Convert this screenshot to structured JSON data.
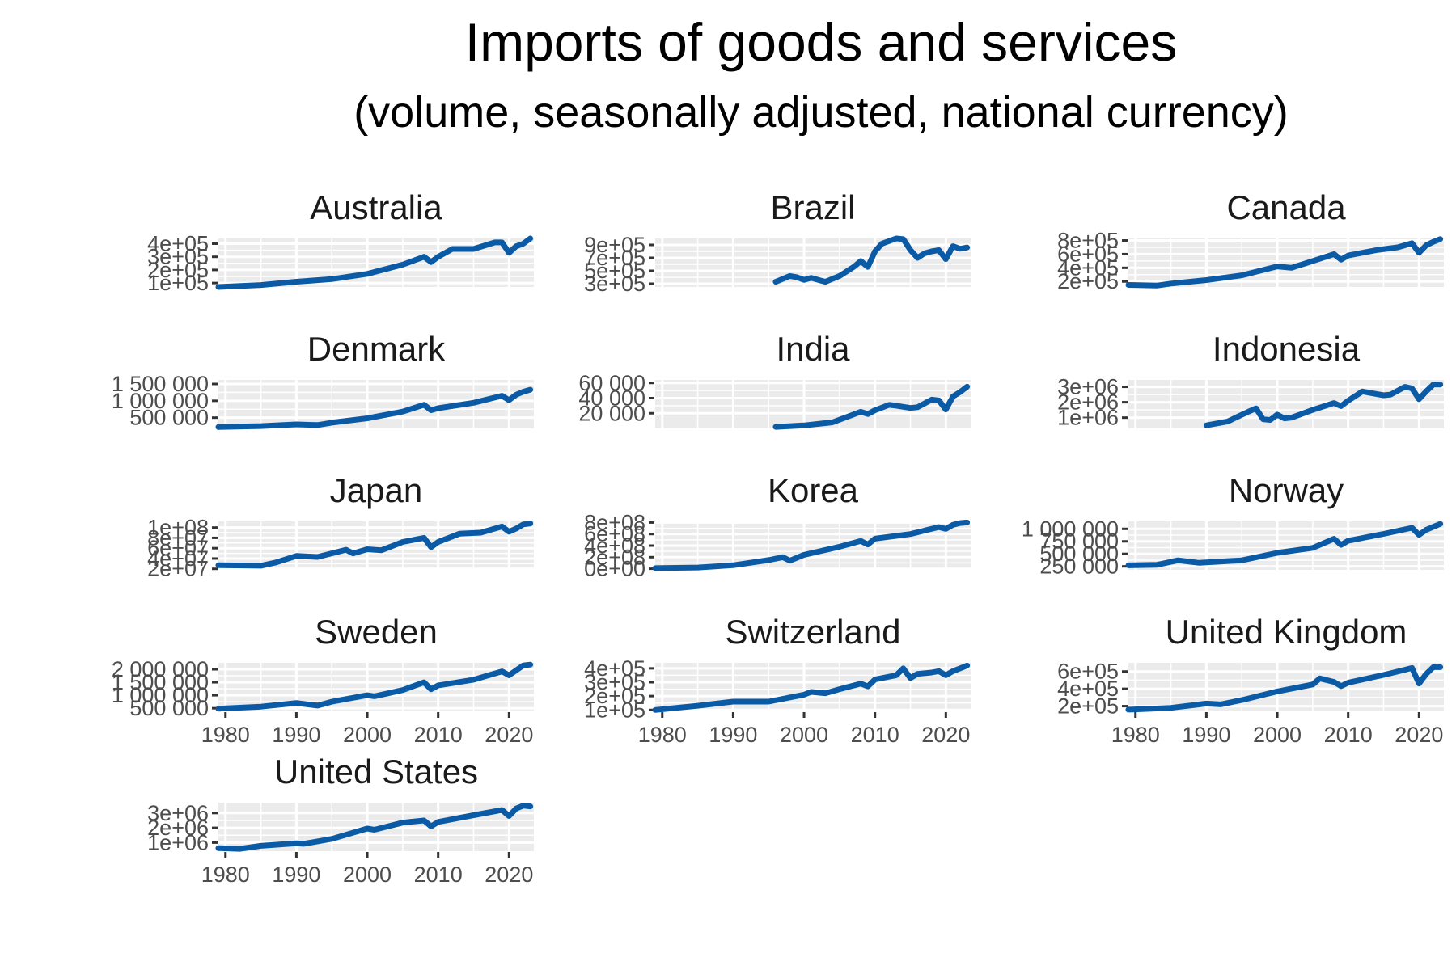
{
  "title": "Imports of goods and services",
  "subtitle": "(volume, seasonally adjusted, national currency)",
  "colors": {
    "line": "#0b5aa6",
    "panel": "#ebebeb",
    "grid": "#ffffff",
    "tick": "#333333"
  },
  "chart_data": {
    "type": "line",
    "x_ticks": [
      "1980",
      "1990",
      "2000",
      "2010",
      "2020"
    ],
    "x_tick_values": [
      1980,
      1990,
      2000,
      2010,
      2020
    ],
    "xlim": [
      1979,
      2023.5
    ],
    "grid": true,
    "panels": [
      {
        "name": "Australia",
        "y_ticks": [
          "1e+05",
          "2e+05",
          "3e+05",
          "4e+05"
        ],
        "y_tick_values": [
          100000,
          200000,
          300000,
          400000
        ],
        "ylim": [
          70000,
          440000
        ],
        "x": [
          1979,
          1985,
          1990,
          1995,
          2000,
          2005,
          2008,
          2009,
          2010,
          2012,
          2015,
          2018,
          2019,
          2020,
          2021,
          2022,
          2023
        ],
        "y": [
          70000,
          85000,
          110000,
          130000,
          170000,
          240000,
          300000,
          260000,
          300000,
          360000,
          360000,
          410000,
          410000,
          330000,
          380000,
          400000,
          440000
        ]
      },
      {
        "name": "Brazil",
        "y_ticks": [
          "3e+05",
          "5e+05",
          "7e+05",
          "9e+05"
        ],
        "y_tick_values": [
          300000,
          500000,
          700000,
          900000
        ],
        "ylim": [
          250000,
          1000000
        ],
        "x": [
          1996,
          1998,
          1999,
          2000,
          2001,
          2003,
          2005,
          2007,
          2008,
          2009,
          2010,
          2011,
          2013,
          2014,
          2015,
          2016,
          2017,
          2018,
          2019,
          2020,
          2021,
          2022,
          2023
        ],
        "y": [
          330000,
          420000,
          400000,
          360000,
          390000,
          330000,
          420000,
          560000,
          650000,
          560000,
          800000,
          920000,
          1000000,
          990000,
          820000,
          700000,
          770000,
          800000,
          820000,
          680000,
          880000,
          840000,
          860000
        ]
      },
      {
        "name": "Canada",
        "y_ticks": [
          "2e+05",
          "4e+05",
          "6e+05",
          "8e+05"
        ],
        "y_tick_values": [
          200000,
          400000,
          600000,
          800000
        ],
        "ylim": [
          120000,
          830000
        ],
        "x": [
          1979,
          1983,
          1985,
          1990,
          1995,
          2000,
          2002,
          2005,
          2008,
          2009,
          2010,
          2014,
          2017,
          2019,
          2020,
          2021,
          2022,
          2023
        ],
        "y": [
          150000,
          140000,
          170000,
          220000,
          290000,
          420000,
          400000,
          500000,
          600000,
          520000,
          580000,
          660000,
          700000,
          760000,
          620000,
          730000,
          780000,
          820000
        ]
      },
      {
        "name": "Denmark",
        "y_ticks": [
          "500 000",
          "1 000 000",
          "1 500 000"
        ],
        "y_tick_values": [
          500000,
          1000000,
          1500000
        ],
        "ylim": [
          180000,
          1620000
        ],
        "x": [
          1979,
          1985,
          1990,
          1993,
          1995,
          2000,
          2005,
          2008,
          2009,
          2010,
          2015,
          2019,
          2020,
          2021,
          2022,
          2023
        ],
        "y": [
          220000,
          250000,
          300000,
          280000,
          350000,
          480000,
          680000,
          880000,
          720000,
          780000,
          940000,
          1150000,
          1020000,
          1180000,
          1270000,
          1330000
        ]
      },
      {
        "name": "India",
        "y_ticks": [
          "20 000",
          "40 000",
          "60 000"
        ],
        "y_tick_values": [
          20000,
          40000,
          60000
        ],
        "ylim": [
          0,
          64000
        ],
        "x": [
          1996,
          2000,
          2004,
          2008,
          2009,
          2010,
          2012,
          2013,
          2015,
          2016,
          2018,
          2019,
          2020,
          2021,
          2022,
          2023
        ],
        "y": [
          2000,
          4000,
          8000,
          22000,
          19000,
          24000,
          31000,
          30000,
          27000,
          28000,
          38000,
          37000,
          25000,
          42000,
          48000,
          55000
        ]
      },
      {
        "name": "Indonesia",
        "y_ticks": [
          "1e+06",
          "2e+06",
          "3e+06"
        ],
        "y_tick_values": [
          1000000,
          2000000,
          3000000
        ],
        "ylim": [
          300000,
          3450000
        ],
        "x": [
          1990,
          1993,
          1996,
          1997,
          1998,
          1999,
          2000,
          2001,
          2002,
          2005,
          2008,
          2009,
          2010,
          2012,
          2015,
          2016,
          2018,
          2019,
          2020,
          2021,
          2022,
          2023
        ],
        "y": [
          500000,
          750000,
          1400000,
          1600000,
          900000,
          850000,
          1200000,
          950000,
          1000000,
          1500000,
          1950000,
          1750000,
          2100000,
          2700000,
          2450000,
          2500000,
          3000000,
          2900000,
          2200000,
          2700000,
          3150000,
          3150000
        ]
      },
      {
        "name": "Japan",
        "y_ticks": [
          "2e+07",
          "4e+07",
          "6e+07",
          "8e+07",
          "1e+08"
        ],
        "y_tick_values": [
          20000000,
          40000000,
          60000000,
          80000000,
          100000000
        ],
        "ylim": [
          18000000,
          112000000
        ],
        "x": [
          1979,
          1985,
          1987,
          1990,
          1993,
          1997,
          1998,
          2000,
          2002,
          2005,
          2008,
          2009,
          2010,
          2013,
          2016,
          2019,
          2020,
          2021,
          2022,
          2023
        ],
        "y": [
          27000000,
          26000000,
          32000000,
          45000000,
          43000000,
          57000000,
          50000000,
          58000000,
          56000000,
          72000000,
          80000000,
          62000000,
          72000000,
          88000000,
          90000000,
          102000000,
          92000000,
          98000000,
          106000000,
          108000000
        ]
      },
      {
        "name": "Korea",
        "y_ticks": [
          "0e+00",
          "2e+08",
          "4e+08",
          "6e+08",
          "8e+08"
        ],
        "y_tick_values": [
          0,
          200000000,
          400000000,
          600000000,
          800000000
        ],
        "ylim": [
          -20000000,
          820000000
        ],
        "x": [
          1979,
          1985,
          1990,
          1995,
          1997,
          1998,
          2000,
          2005,
          2008,
          2009,
          2010,
          2015,
          2019,
          2020,
          2021,
          2022,
          2023
        ],
        "y": [
          10000000,
          20000000,
          60000000,
          150000000,
          200000000,
          140000000,
          240000000,
          380000000,
          480000000,
          420000000,
          520000000,
          600000000,
          720000000,
          690000000,
          760000000,
          790000000,
          800000000
        ]
      },
      {
        "name": "Norway",
        "y_ticks": [
          "250 000",
          "500 000",
          "750 000",
          "1 000 000"
        ],
        "y_tick_values": [
          250000,
          500000,
          750000,
          1000000
        ],
        "ylim": [
          180000,
          1150000
        ],
        "x": [
          1979,
          1983,
          1986,
          1989,
          1995,
          2000,
          2005,
          2008,
          2009,
          2010,
          2015,
          2019,
          2020,
          2021,
          2023
        ],
        "y": [
          270000,
          280000,
          370000,
          320000,
          370000,
          520000,
          620000,
          800000,
          680000,
          760000,
          900000,
          1020000,
          880000,
          980000,
          1100000
        ]
      },
      {
        "name": "Sweden",
        "y_ticks": [
          "500 000",
          "1 000 000",
          "1 500 000",
          "2 000 000"
        ],
        "y_tick_values": [
          500000,
          1000000,
          1500000,
          2000000
        ],
        "ylim": [
          380000,
          2250000
        ],
        "x": [
          1979,
          1985,
          1990,
          1993,
          1995,
          2000,
          2001,
          2005,
          2008,
          2009,
          2010,
          2015,
          2019,
          2020,
          2021,
          2022,
          2023
        ],
        "y": [
          480000,
          560000,
          700000,
          600000,
          750000,
          1000000,
          960000,
          1200000,
          1500000,
          1230000,
          1380000,
          1600000,
          1920000,
          1770000,
          1960000,
          2150000,
          2180000
        ]
      },
      {
        "name": "Switzerland",
        "y_ticks": [
          "1e+05",
          "2e+05",
          "3e+05",
          "4e+05"
        ],
        "y_tick_values": [
          100000,
          200000,
          300000,
          400000
        ],
        "ylim": [
          90000,
          440000
        ],
        "x": [
          1979,
          1985,
          1990,
          1995,
          2000,
          2001,
          2003,
          2005,
          2008,
          2009,
          2010,
          2013,
          2014,
          2015,
          2016,
          2018,
          2019,
          2020,
          2021,
          2022,
          2023
        ],
        "y": [
          100000,
          130000,
          160000,
          160000,
          210000,
          230000,
          220000,
          250000,
          290000,
          270000,
          320000,
          350000,
          400000,
          330000,
          360000,
          370000,
          380000,
          350000,
          380000,
          400000,
          420000
        ]
      },
      {
        "name": "United Kingdom",
        "y_ticks": [
          "2e+05",
          "4e+05",
          "6e+05"
        ],
        "y_tick_values": [
          200000,
          400000,
          600000
        ],
        "ylim": [
          140000,
          700000
        ],
        "x": [
          1979,
          1985,
          1990,
          1992,
          1995,
          2000,
          2005,
          2006,
          2008,
          2009,
          2010,
          2015,
          2018,
          2019,
          2020,
          2021,
          2022,
          2023
        ],
        "y": [
          160000,
          180000,
          230000,
          220000,
          270000,
          370000,
          450000,
          520000,
          480000,
          430000,
          470000,
          560000,
          620000,
          640000,
          460000,
          570000,
          650000,
          650000
        ]
      },
      {
        "name": "United States",
        "y_ticks": [
          "1e+06",
          "2e+06",
          "3e+06"
        ],
        "y_tick_values": [
          1000000,
          2000000,
          3000000
        ],
        "ylim": [
          420000,
          3700000
        ],
        "x": [
          1979,
          1982,
          1985,
          1990,
          1991,
          1995,
          2000,
          2001,
          2005,
          2008,
          2009,
          2010,
          2015,
          2019,
          2020,
          2021,
          2022,
          2023
        ],
        "y": [
          620000,
          580000,
          780000,
          950000,
          920000,
          1250000,
          1950000,
          1870000,
          2350000,
          2500000,
          2100000,
          2400000,
          2850000,
          3200000,
          2800000,
          3300000,
          3500000,
          3450000
        ]
      }
    ]
  }
}
